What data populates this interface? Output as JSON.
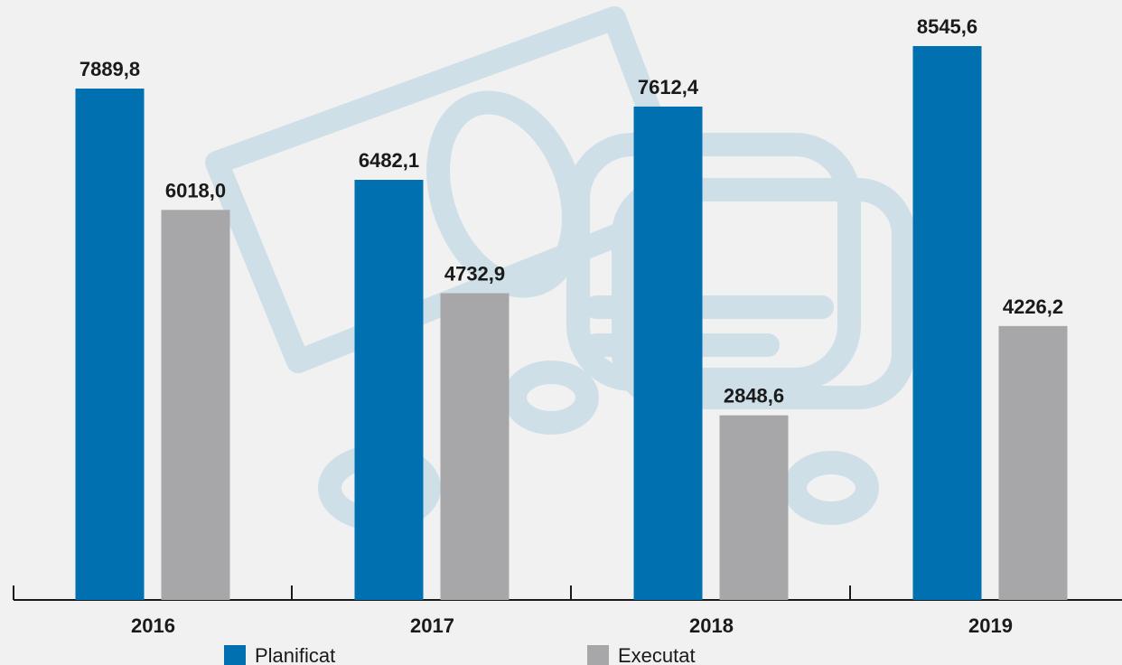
{
  "chart_data": {
    "type": "bar",
    "categories": [
      "2016",
      "2017",
      "2018",
      "2019"
    ],
    "series": [
      {
        "name": "Planificat",
        "color": "#0070b0",
        "values": [
          7889.8,
          6482.1,
          7612.4,
          8545.6
        ],
        "value_labels": [
          "7889,8",
          "6482,1",
          "7612,4",
          "8545,6"
        ]
      },
      {
        "name": "Executat",
        "color": "#a7a7aa",
        "values": [
          6018.0,
          4732.9,
          2848.6,
          4226.2
        ],
        "value_labels": [
          "6018,0",
          "4732,9",
          "2848,6",
          "4226,2"
        ]
      }
    ],
    "legend": "bottom"
  }
}
